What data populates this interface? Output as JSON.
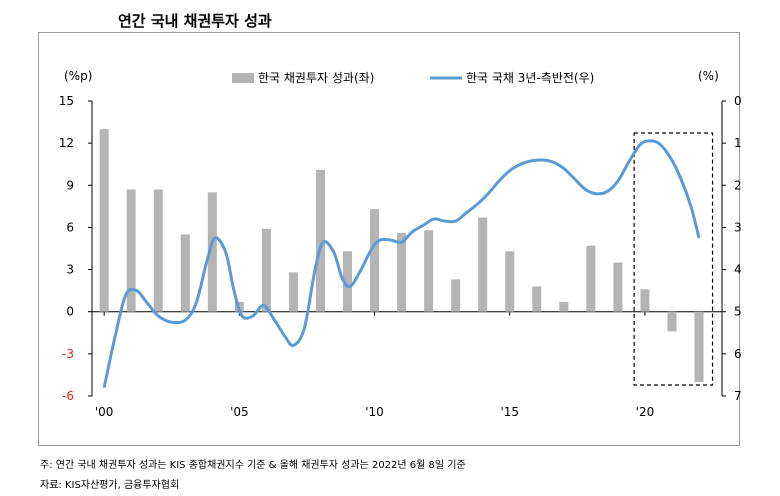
{
  "chart_data": {
    "type": "bar+line",
    "title": "연간 국내 채권투자 성과",
    "left_axis": {
      "unit": "(%p)",
      "ylim": [
        -6,
        15
      ],
      "ticks": [
        15,
        12,
        9,
        6,
        3,
        0,
        -3,
        -6
      ]
    },
    "right_axis": {
      "unit": "(%)",
      "ylim": [
        0,
        7
      ],
      "inverted": true,
      "ticks": [
        0,
        1,
        2,
        3,
        4,
        5,
        6,
        7
      ]
    },
    "x_ticks": [
      {
        "year": 2000,
        "label": "'00"
      },
      {
        "year": 2005,
        "label": "'05"
      },
      {
        "year": 2010,
        "label": "'10"
      },
      {
        "year": 2015,
        "label": "'15"
      },
      {
        "year": 2020,
        "label": "'20"
      }
    ],
    "series": [
      {
        "name": "한국 채권투자 성과(좌)",
        "kind": "bar",
        "axis": "left",
        "color": "#b4b4b4",
        "x": [
          2000,
          2001,
          2002,
          2003,
          2004,
          2005,
          2006,
          2007,
          2008,
          2009,
          2010,
          2011,
          2012,
          2013,
          2014,
          2015,
          2016,
          2017,
          2018,
          2019,
          2020,
          2021,
          2022
        ],
        "values": [
          13.0,
          8.7,
          8.7,
          5.5,
          8.5,
          0.7,
          5.9,
          2.8,
          10.1,
          4.3,
          7.3,
          5.6,
          5.8,
          2.3,
          6.7,
          4.3,
          1.8,
          0.7,
          4.7,
          3.5,
          1.6,
          -1.4,
          -5.0
        ]
      },
      {
        "name": "한국 국채 3년-측반전(우)",
        "kind": "line",
        "axis": "right",
        "color": "#5b9bd5",
        "points": [
          [
            2000.0,
            6.8
          ],
          [
            2000.4,
            5.6
          ],
          [
            2000.8,
            4.6
          ],
          [
            2001.2,
            4.5
          ],
          [
            2001.6,
            4.8
          ],
          [
            2002.0,
            5.1
          ],
          [
            2002.5,
            5.25
          ],
          [
            2003.0,
            5.2
          ],
          [
            2003.4,
            4.8
          ],
          [
            2003.8,
            3.8
          ],
          [
            2004.1,
            3.25
          ],
          [
            2004.5,
            3.6
          ],
          [
            2004.8,
            4.5
          ],
          [
            2005.1,
            5.1
          ],
          [
            2005.5,
            5.1
          ],
          [
            2005.9,
            4.85
          ],
          [
            2006.3,
            5.2
          ],
          [
            2006.7,
            5.6
          ],
          [
            2007.0,
            5.8
          ],
          [
            2007.4,
            5.4
          ],
          [
            2007.8,
            4.0
          ],
          [
            2008.1,
            3.35
          ],
          [
            2008.5,
            3.6
          ],
          [
            2008.8,
            4.2
          ],
          [
            2009.1,
            4.4
          ],
          [
            2009.5,
            4.0
          ],
          [
            2009.9,
            3.5
          ],
          [
            2010.2,
            3.3
          ],
          [
            2010.6,
            3.3
          ],
          [
            2011.0,
            3.35
          ],
          [
            2011.4,
            3.1
          ],
          [
            2011.8,
            2.95
          ],
          [
            2012.2,
            2.8
          ],
          [
            2012.6,
            2.85
          ],
          [
            2013.0,
            2.85
          ],
          [
            2013.4,
            2.65
          ],
          [
            2013.8,
            2.45
          ],
          [
            2014.2,
            2.2
          ],
          [
            2014.6,
            1.9
          ],
          [
            2015.0,
            1.65
          ],
          [
            2015.4,
            1.5
          ],
          [
            2015.8,
            1.42
          ],
          [
            2016.2,
            1.4
          ],
          [
            2016.6,
            1.45
          ],
          [
            2017.0,
            1.6
          ],
          [
            2017.4,
            1.85
          ],
          [
            2017.8,
            2.1
          ],
          [
            2018.2,
            2.2
          ],
          [
            2018.6,
            2.15
          ],
          [
            2019.0,
            1.9
          ],
          [
            2019.4,
            1.45
          ],
          [
            2019.8,
            1.05
          ],
          [
            2020.1,
            0.95
          ],
          [
            2020.5,
            1.0
          ],
          [
            2020.9,
            1.3
          ],
          [
            2021.3,
            1.8
          ],
          [
            2021.7,
            2.5
          ],
          [
            2022.0,
            3.25
          ]
        ]
      }
    ],
    "highlight_box": {
      "x_range": [
        2019.6,
        2022.5
      ],
      "style": "dashed"
    }
  },
  "footnote": "주: 연간 국내 채권투자 성과는 KIS 종합채권지수 기준 & 올해 채권투자 성과는 2022년 6월 8일 기준",
  "source": "자료: KIS자산평가, 금융투자협회"
}
